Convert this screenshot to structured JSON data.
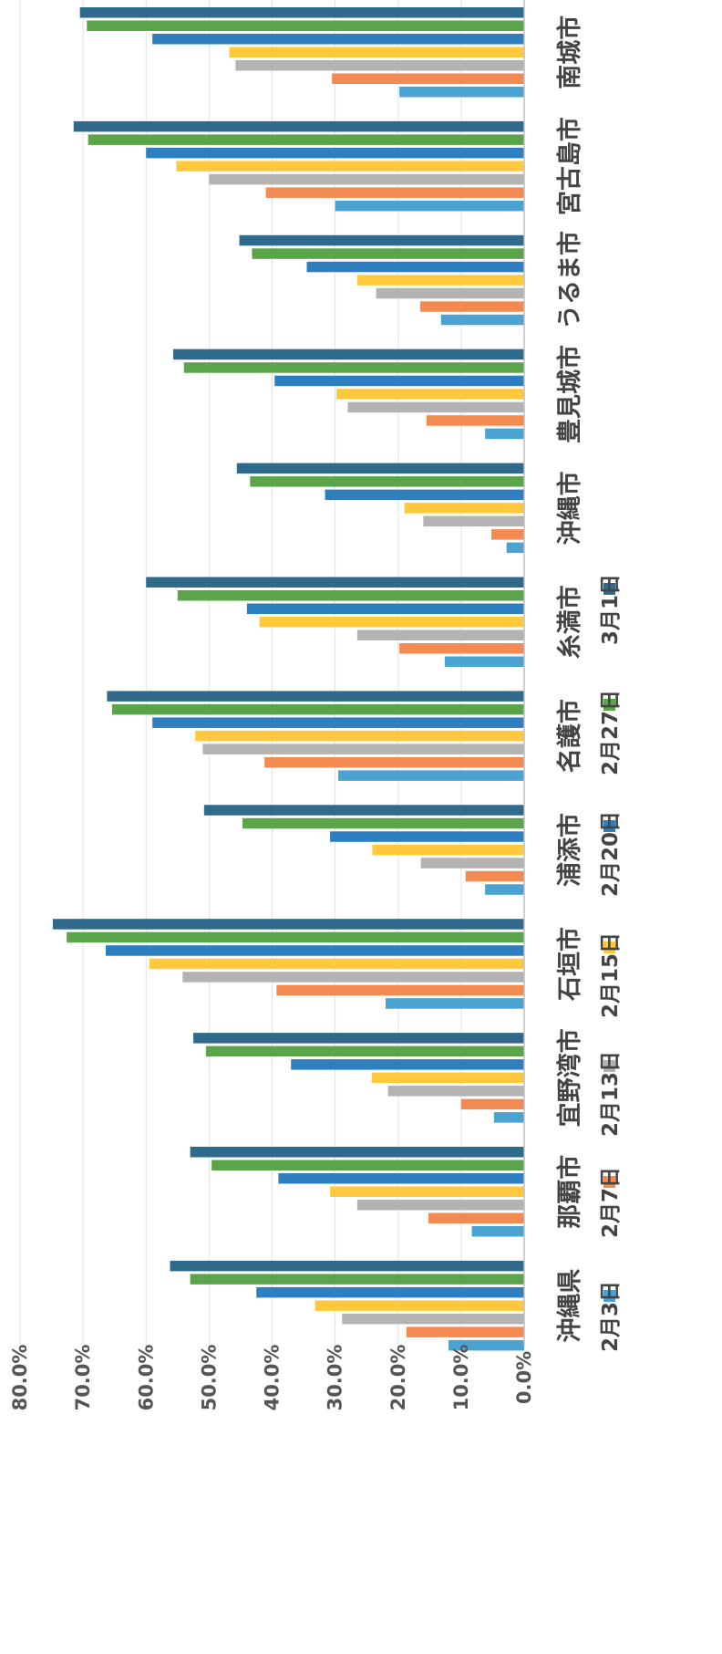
{
  "chart_data": {
    "type": "bar",
    "orientation": "horizontal",
    "categories": [
      "南城市",
      "宮古島市",
      "うるま市",
      "豊見城市",
      "沖縄市",
      "糸満市",
      "名護市",
      "浦添市",
      "石垣市",
      "宜野湾市",
      "那覇市",
      "沖縄県"
    ],
    "series": [
      {
        "name": "2月3日",
        "color": "#4aa3d1",
        "values": [
          19.8,
          30.0,
          13.2,
          6.2,
          2.8,
          12.6,
          29.5,
          6.2,
          22.0,
          4.8,
          8.3,
          12.0
        ]
      },
      {
        "name": "2月7日",
        "color": "#f28a52",
        "values": [
          30.5,
          41.0,
          16.5,
          15.5,
          5.2,
          19.8,
          41.2,
          9.3,
          39.3,
          10.0,
          15.2,
          18.7
        ]
      },
      {
        "name": "2月13日",
        "color": "#b3b3b3",
        "values": [
          45.8,
          50.0,
          23.5,
          28.0,
          16.0,
          26.5,
          51.0,
          16.4,
          54.2,
          21.6,
          26.5,
          28.9
        ]
      },
      {
        "name": "2月15日",
        "color": "#ffc83d",
        "values": [
          46.8,
          55.2,
          26.5,
          29.8,
          19.0,
          42.0,
          52.2,
          24.1,
          59.5,
          24.2,
          30.8,
          33.2
        ]
      },
      {
        "name": "2月20日",
        "color": "#2e7fc0",
        "values": [
          59.0,
          60.0,
          34.5,
          39.6,
          31.6,
          44.0,
          59.0,
          30.8,
          66.4,
          37.0,
          39.0,
          42.5
        ]
      },
      {
        "name": "2月27日",
        "color": "#5aa54a",
        "values": [
          69.4,
          69.2,
          43.2,
          54.0,
          43.5,
          55.0,
          65.4,
          44.7,
          72.6,
          50.5,
          49.6,
          53.0
        ]
      },
      {
        "name": "3月1日",
        "color": "#2f6a8c",
        "values": [
          70.5,
          71.5,
          45.2,
          55.7,
          45.6,
          60.0,
          66.2,
          50.8,
          74.8,
          52.5,
          53.0,
          56.2
        ]
      }
    ],
    "value_axis": {
      "min": 0,
      "max": 80,
      "step": 10,
      "tick_labels": [
        "0.0%",
        "10.0%",
        "20.0%",
        "30.0%",
        "40.0%",
        "50.0%",
        "60.0%",
        "70.0%",
        "80.0%"
      ]
    },
    "grid": true,
    "legend_position": "bottom"
  }
}
